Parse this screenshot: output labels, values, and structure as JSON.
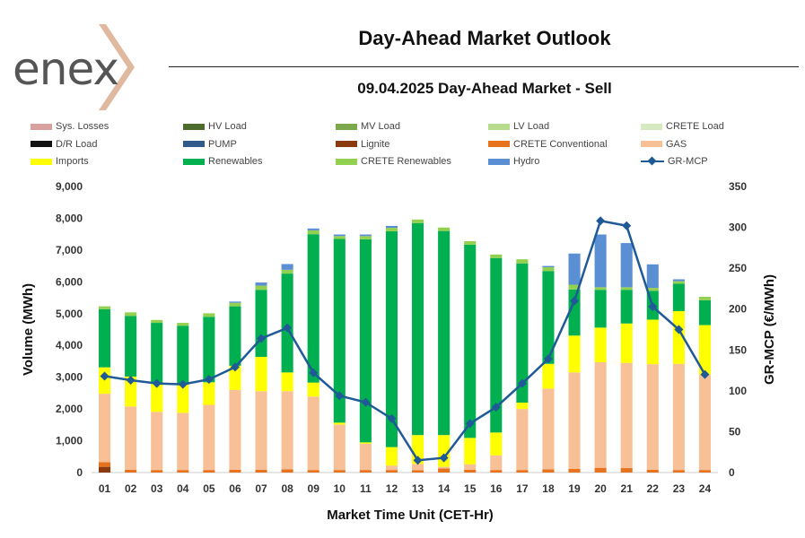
{
  "header": {
    "logo_text": "enex",
    "title": "Day-Ahead Market Outlook",
    "subtitle": "09.04.2025  Day-Ahead Market - Sell"
  },
  "chart_data": {
    "type": "bar",
    "subtype": "stacked-bar-with-line",
    "title": "09.04.2025  Day-Ahead Market - Sell",
    "xlabel": "Market Time Unit (CET-Hr)",
    "ylabel": "Volume (MWh)",
    "y2label": "GR-MCP (€/MWh)",
    "ylim": [
      0,
      9000
    ],
    "y2lim": [
      0,
      350
    ],
    "yticks": [
      "0",
      "1,000",
      "2,000",
      "3,000",
      "4,000",
      "5,000",
      "6,000",
      "7,000",
      "8,000",
      "9,000"
    ],
    "yticks_values": [
      0,
      1000,
      2000,
      3000,
      4000,
      5000,
      6000,
      7000,
      8000,
      9000
    ],
    "y2ticks": [
      "0",
      "50",
      "100",
      "150",
      "200",
      "250",
      "300",
      "350"
    ],
    "y2ticks_values": [
      0,
      50,
      100,
      150,
      200,
      250,
      300,
      350
    ],
    "categories": [
      "01",
      "02",
      "03",
      "04",
      "05",
      "06",
      "07",
      "08",
      "09",
      "10",
      "11",
      "12",
      "13",
      "14",
      "15",
      "16",
      "17",
      "18",
      "19",
      "20",
      "21",
      "22",
      "23",
      "24"
    ],
    "legend_position": "top",
    "series": [
      {
        "name": "Sys. Losses",
        "color": "#d9a0a0",
        "values": [
          0,
          0,
          0,
          0,
          0,
          0,
          0,
          0,
          0,
          0,
          0,
          0,
          0,
          0,
          0,
          0,
          0,
          0,
          0,
          0,
          0,
          0,
          0,
          0
        ]
      },
      {
        "name": "HV Load",
        "color": "#4e6b2e",
        "values": [
          0,
          0,
          0,
          0,
          0,
          0,
          0,
          0,
          0,
          0,
          0,
          0,
          0,
          0,
          0,
          0,
          0,
          0,
          0,
          0,
          0,
          0,
          0,
          0
        ]
      },
      {
        "name": "MV Load",
        "color": "#7aa84a",
        "values": [
          0,
          0,
          0,
          0,
          0,
          0,
          0,
          0,
          0,
          0,
          0,
          0,
          0,
          0,
          0,
          0,
          0,
          0,
          0,
          0,
          0,
          0,
          0,
          0
        ]
      },
      {
        "name": "LV Load",
        "color": "#b8dc8e",
        "values": [
          0,
          0,
          0,
          0,
          0,
          0,
          0,
          0,
          0,
          0,
          0,
          0,
          0,
          0,
          0,
          0,
          0,
          0,
          0,
          0,
          0,
          0,
          0,
          0
        ]
      },
      {
        "name": "CRETE Load",
        "color": "#d5eac0",
        "values": [
          0,
          0,
          0,
          0,
          0,
          0,
          0,
          0,
          0,
          0,
          0,
          0,
          0,
          0,
          0,
          0,
          0,
          0,
          0,
          0,
          0,
          0,
          0,
          0
        ]
      },
      {
        "name": "D/R Load",
        "color": "#111111",
        "values": [
          0,
          0,
          0,
          0,
          0,
          0,
          0,
          0,
          0,
          0,
          0,
          0,
          0,
          0,
          0,
          0,
          0,
          0,
          0,
          0,
          0,
          0,
          0,
          0
        ]
      },
      {
        "name": "PUMP",
        "color": "#2e5b8a",
        "values": [
          0,
          0,
          0,
          0,
          0,
          0,
          0,
          0,
          0,
          0,
          0,
          0,
          0,
          0,
          0,
          0,
          0,
          0,
          0,
          0,
          0,
          0,
          0,
          0
        ]
      },
      {
        "name": "Lignite",
        "color": "#8b3a0f",
        "values": [
          180,
          0,
          0,
          0,
          0,
          0,
          0,
          0,
          0,
          0,
          0,
          0,
          0,
          0,
          0,
          0,
          0,
          0,
          0,
          0,
          0,
          0,
          0,
          0
        ]
      },
      {
        "name": "CRETE Conventional",
        "color": "#e8731e",
        "values": [
          150,
          90,
          80,
          80,
          80,
          90,
          90,
          100,
          80,
          80,
          80,
          80,
          70,
          130,
          90,
          80,
          80,
          100,
          120,
          150,
          140,
          90,
          80,
          80
        ]
      },
      {
        "name": "GAS",
        "color": "#f7c096",
        "values": [
          2150,
          1990,
          1830,
          1800,
          2050,
          2510,
          2470,
          2460,
          2310,
          1430,
          830,
          140,
          200,
          50,
          170,
          460,
          1920,
          2540,
          3030,
          3320,
          3310,
          3320,
          3340,
          3000
        ]
      },
      {
        "name": "Imports",
        "color": "#ffff00",
        "values": [
          830,
          940,
          900,
          890,
          710,
          760,
          1080,
          590,
          440,
          60,
          40,
          580,
          910,
          1000,
          830,
          720,
          200,
          780,
          1160,
          1090,
          1240,
          1400,
          1660,
          1560
        ]
      },
      {
        "name": "Renewables",
        "color": "#00b050",
        "values": [
          1830,
          1910,
          1900,
          1850,
          2060,
          1870,
          2110,
          3110,
          4670,
          5780,
          6390,
          6790,
          6670,
          6420,
          6080,
          5490,
          4380,
          2920,
          1450,
          1190,
          1060,
          910,
          860,
          780
        ]
      },
      {
        "name": "CRETE Renewables",
        "color": "#92d050",
        "values": [
          90,
          110,
          90,
          90,
          110,
          110,
          130,
          120,
          120,
          90,
          100,
          110,
          110,
          110,
          110,
          110,
          130,
          120,
          150,
          80,
          80,
          90,
          80,
          110
        ]
      },
      {
        "name": "Hydro",
        "color": "#5b8fd4",
        "values": [
          0,
          0,
          0,
          0,
          0,
          40,
          100,
          180,
          60,
          50,
          50,
          60,
          0,
          0,
          0,
          0,
          0,
          40,
          980,
          1660,
          1390,
          740,
          60,
          0
        ]
      }
    ],
    "line": {
      "name": "GR-MCP",
      "color": "#1f5a96",
      "axis": "right",
      "values": [
        118,
        113,
        109,
        108,
        114,
        129,
        164,
        177,
        122,
        94,
        86,
        66,
        15,
        18,
        60,
        80,
        109,
        139,
        210,
        308,
        302,
        203,
        175,
        120
      ]
    }
  }
}
